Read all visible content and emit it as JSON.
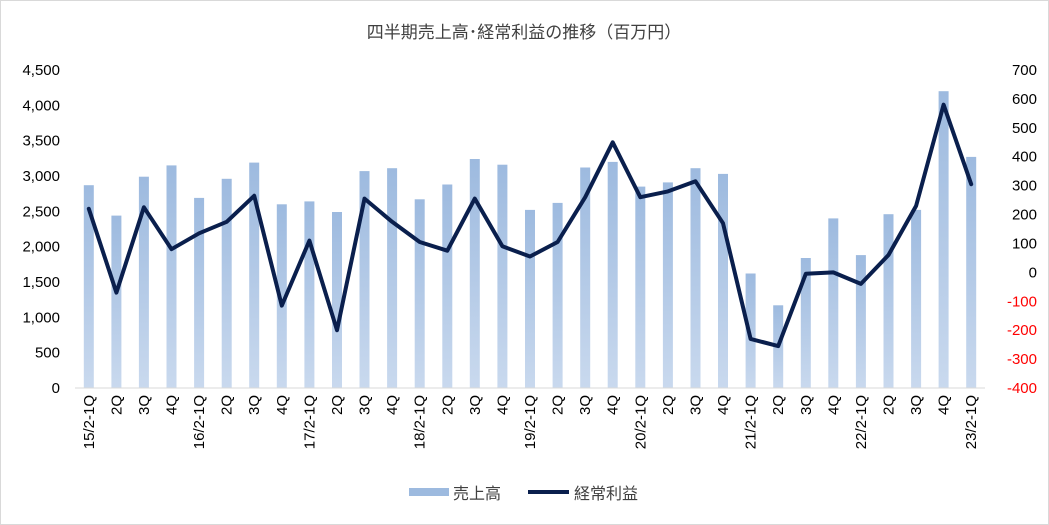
{
  "chart_data": {
    "type": "bar+line",
    "title": "四半期売上高･経常利益の推移（百万円）",
    "categories": [
      "15/2-1Q",
      "2Q",
      "3Q",
      "4Q",
      "16/2-1Q",
      "2Q",
      "3Q",
      "4Q",
      "17/2-1Q",
      "2Q",
      "3Q",
      "4Q",
      "18/2-1Q",
      "2Q",
      "3Q",
      "4Q",
      "19/2-1Q",
      "2Q",
      "3Q",
      "4Q",
      "20/2-1Q",
      "2Q",
      "3Q",
      "4Q",
      "21/2-1Q",
      "2Q",
      "3Q",
      "4Q",
      "22/2-1Q",
      "2Q",
      "3Q",
      "4Q",
      "23/2-1Q"
    ],
    "series": [
      {
        "name": "売上高",
        "type": "bar",
        "axis": "left",
        "color": "#9dbadf",
        "values": [
          2870,
          2440,
          2990,
          3150,
          2690,
          2960,
          3190,
          2600,
          2640,
          2490,
          3070,
          3110,
          2670,
          2880,
          3240,
          3160,
          2520,
          2620,
          3120,
          3200,
          2850,
          2910,
          3110,
          3030,
          1620,
          1170,
          1840,
          2400,
          1880,
          2460,
          2520,
          4200,
          3270
        ]
      },
      {
        "name": "経常利益",
        "type": "line",
        "axis": "right",
        "color": "#0a1f4d",
        "values": [
          220,
          -70,
          225,
          80,
          135,
          175,
          265,
          -115,
          110,
          -200,
          255,
          175,
          105,
          75,
          255,
          90,
          55,
          105,
          260,
          450,
          260,
          280,
          315,
          170,
          -230,
          -255,
          -5,
          0,
          -40,
          60,
          230,
          580,
          305
        ]
      }
    ],
    "y_left": {
      "min": 0,
      "max": 4500,
      "step": 500,
      "tick_labels": [
        "0",
        "500",
        "1,000",
        "1,500",
        "2,000",
        "2,500",
        "3,000",
        "3,500",
        "4,000",
        "4,500"
      ]
    },
    "y_right": {
      "min": -400,
      "max": 700,
      "step": 100,
      "tick_labels": [
        "-400",
        "-300",
        "-200",
        "-100",
        "0",
        "100",
        "200",
        "300",
        "400",
        "500",
        "600",
        "700"
      ]
    },
    "negative_tick_color": "#ff0000",
    "grid": false,
    "legend_position": "bottom"
  }
}
